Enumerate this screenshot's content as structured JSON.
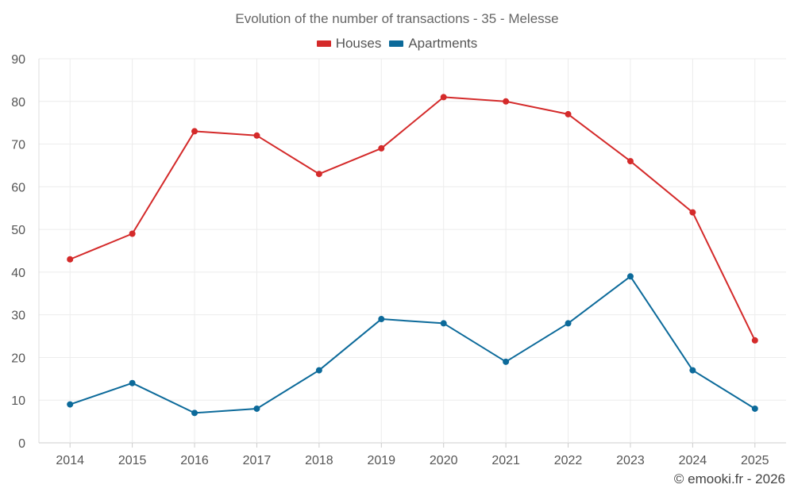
{
  "chart_data": {
    "type": "line",
    "title": "Evolution of the number of transactions - 35 - Melesse",
    "categories": [
      "2014",
      "2015",
      "2016",
      "2017",
      "2018",
      "2019",
      "2020",
      "2021",
      "2022",
      "2023",
      "2024",
      "2025"
    ],
    "ylim": [
      0,
      90
    ],
    "yticks": [
      0,
      10,
      20,
      30,
      40,
      50,
      60,
      70,
      80,
      90
    ],
    "grid": true,
    "legend_position": "top-center",
    "series": [
      {
        "name": "Houses",
        "color": "#d42a2a",
        "values": [
          43,
          49,
          73,
          72,
          63,
          69,
          81,
          80,
          77,
          66,
          54,
          24
        ]
      },
      {
        "name": "Apartments",
        "color": "#0c6a9a",
        "values": [
          9,
          14,
          7,
          8,
          17,
          29,
          28,
          19,
          28,
          39,
          17,
          8
        ]
      }
    ]
  },
  "credit": "© emooki.fr - 2026"
}
